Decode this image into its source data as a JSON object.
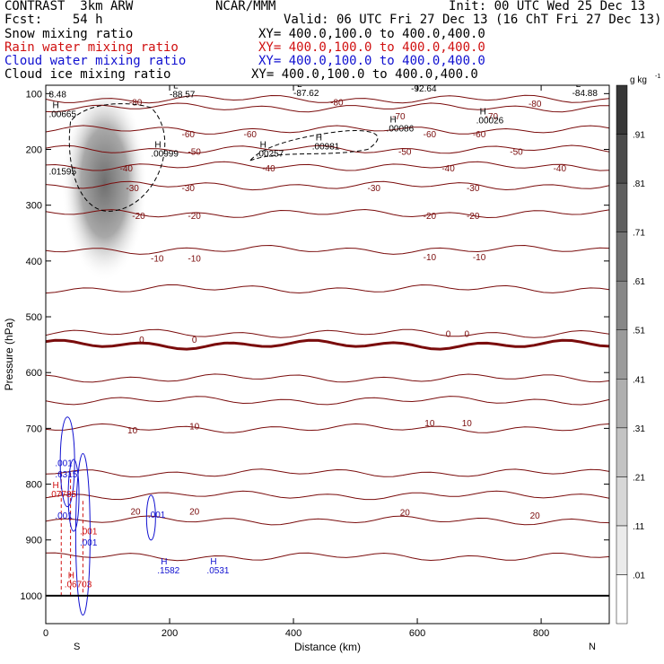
{
  "header": {
    "title": "CONTRAST  3km ARW",
    "center": "NCAR/MMM",
    "init": "Init: 00 UTC Wed 25 Dec 13",
    "fcst": "Fcst:    54 h",
    "valid": "Valid: 06 UTC Fri 27 Dec 13 (16 ChT Fri 27 Dec 13)",
    "fields": [
      {
        "name": "Snow mixing ratio",
        "xy": "XY= 400.0,100.0 to 400.0,400.0",
        "color": "#000000"
      },
      {
        "name": "Rain water mixing ratio",
        "xy": "XY= 400.0,100.0 to 400.0,400.0",
        "color": "#d01010"
      },
      {
        "name": "Cloud water mixing ratio",
        "xy": "XY= 400.0,100.0 to 400.0,400.0",
        "color": "#1010d0"
      },
      {
        "name": "Cloud ice mixing ratio",
        "xy": "XY= 400.0,100.0 to 400.0,400.0",
        "color": "#000000"
      }
    ]
  },
  "chart_data": {
    "type": "heatmap",
    "xlabel": "Distance (km)",
    "ylabel": "Pressure (hPa)",
    "xlim": [
      0,
      910
    ],
    "ylim": [
      1050,
      85
    ],
    "x_ticks": [
      0,
      200,
      400,
      600,
      800
    ],
    "y_ticks": [
      100,
      200,
      300,
      400,
      500,
      600,
      700,
      800,
      900,
      1000
    ],
    "x_end_labels": {
      "left": "S",
      "right": "N"
    },
    "colorbar": {
      "unit": "g kg",
      "unit_exp": "-1",
      "levels": [
        ".01",
        ".11",
        ".21",
        ".31",
        ".41",
        ".51",
        ".61",
        ".71",
        ".81",
        ".91"
      ]
    },
    "temperature_contours": [
      {
        "label": "-80",
        "p": 110
      },
      {
        "label": "-70",
        "p": 125
      },
      {
        "label": "-60",
        "p": 165
      },
      {
        "label": "-50",
        "p": 200
      },
      {
        "label": "-40",
        "p": 230
      },
      {
        "label": "-30",
        "p": 265
      },
      {
        "label": "-20",
        "p": 315
      },
      {
        "label": "-10",
        "p": 380
      },
      {
        "label": "0",
        "p": 450
      },
      {
        "label": "0",
        "p": 530
      },
      {
        "label": "0",
        "p": 550
      },
      {
        "label": "10",
        "p": 610
      },
      {
        "label": "10",
        "p": 650
      },
      {
        "label": "10",
        "p": 700
      },
      {
        "label": "20",
        "p": 780
      },
      {
        "label": "20",
        "p": 820
      },
      {
        "label": "20",
        "p": 865
      },
      {
        "label": "20",
        "p": 930
      }
    ],
    "contour_labels": [
      {
        "text": "-80",
        "x": 145,
        "p": 115
      },
      {
        "text": "-80",
        "x": 470,
        "p": 115
      },
      {
        "text": "-80",
        "x": 790,
        "p": 117
      },
      {
        "text": "-70",
        "x": 570,
        "p": 140
      },
      {
        "text": "-70",
        "x": 720,
        "p": 140
      },
      {
        "text": "-60",
        "x": 230,
        "p": 172
      },
      {
        "text": "-60",
        "x": 330,
        "p": 172
      },
      {
        "text": "-60",
        "x": 620,
        "p": 172
      },
      {
        "text": "-60",
        "x": 700,
        "p": 172
      },
      {
        "text": "-50",
        "x": 240,
        "p": 203
      },
      {
        "text": "-50",
        "x": 580,
        "p": 203
      },
      {
        "text": "-50",
        "x": 760,
        "p": 203
      },
      {
        "text": "-40",
        "x": 130,
        "p": 233
      },
      {
        "text": "-40",
        "x": 360,
        "p": 233
      },
      {
        "text": "-40",
        "x": 650,
        "p": 233
      },
      {
        "text": "-40",
        "x": 830,
        "p": 233
      },
      {
        "text": "-30",
        "x": 140,
        "p": 268
      },
      {
        "text": "-30",
        "x": 230,
        "p": 268
      },
      {
        "text": "-30",
        "x": 530,
        "p": 268
      },
      {
        "text": "-30",
        "x": 690,
        "p": 268
      },
      {
        "text": "-20",
        "x": 150,
        "p": 318
      },
      {
        "text": "-20",
        "x": 240,
        "p": 318
      },
      {
        "text": "-20",
        "x": 620,
        "p": 318
      },
      {
        "text": "-20",
        "x": 690,
        "p": 318
      },
      {
        "text": "-10",
        "x": 180,
        "p": 395
      },
      {
        "text": "-10",
        "x": 240,
        "p": 395
      },
      {
        "text": "-10",
        "x": 620,
        "p": 392
      },
      {
        "text": "-10",
        "x": 700,
        "p": 392
      },
      {
        "text": "0",
        "x": 155,
        "p": 540
      },
      {
        "text": "0",
        "x": 240,
        "p": 540
      },
      {
        "text": "0",
        "x": 650,
        "p": 530
      },
      {
        "text": "0",
        "x": 680,
        "p": 530
      },
      {
        "text": "10",
        "x": 140,
        "p": 703
      },
      {
        "text": "10",
        "x": 240,
        "p": 695
      },
      {
        "text": "10",
        "x": 620,
        "p": 690
      },
      {
        "text": "10",
        "x": 680,
        "p": 690
      },
      {
        "text": "20",
        "x": 145,
        "p": 848
      },
      {
        "text": "20",
        "x": 240,
        "p": 848
      },
      {
        "text": "20",
        "x": 580,
        "p": 850
      },
      {
        "text": "20",
        "x": 790,
        "p": 855
      }
    ],
    "extrema_labels": [
      {
        "text": "-88.57",
        "x": 200,
        "p": 107,
        "color": "#000000",
        "letter": "L"
      },
      {
        "text": "-87.62",
        "x": 400,
        "p": 104,
        "color": "#000000",
        "letter": "L"
      },
      {
        "text": "-92.64",
        "x": 590,
        "p": 96,
        "color": "#000000",
        "letter": "L"
      },
      {
        "text": "-84.88",
        "x": 850,
        "p": 104,
        "color": "#000000",
        "letter": "L"
      },
      {
        "text": "8.48",
        "x": 5,
        "p": 107,
        "color": "#000000",
        "letter": ""
      },
      {
        "text": ".00665",
        "x": 5,
        "p": 142,
        "color": "#000000",
        "letter": "H"
      },
      {
        "text": ".00999",
        "x": 170,
        "p": 213,
        "color": "#000000",
        "letter": "H"
      },
      {
        "text": ".00257",
        "x": 340,
        "p": 213,
        "color": "#000000",
        "letter": "H"
      },
      {
        "text": ".00981",
        "x": 430,
        "p": 200,
        "color": "#000000",
        "letter": "H"
      },
      {
        "text": ".00086",
        "x": 550,
        "p": 168,
        "color": "#000000",
        "letter": "H"
      },
      {
        "text": ".00026",
        "x": 695,
        "p": 153,
        "color": "#000000",
        "letter": "H"
      },
      {
        "text": ".01595",
        "x": 5,
        "p": 245,
        "color": "#000000",
        "letter": ""
      },
      {
        "text": ".001",
        "x": 15,
        "p": 768,
        "color": "#1010d0",
        "letter": ""
      },
      {
        "text": ".6315",
        "x": 15,
        "p": 788,
        "color": "#1010d0",
        "letter": ""
      },
      {
        "text": ".07785",
        "x": 5,
        "p": 823,
        "color": "#d01010",
        "letter": "H"
      },
      {
        "text": ".001",
        "x": 15,
        "p": 862,
        "color": "#1010d0",
        "letter": ""
      },
      {
        "text": ".001",
        "x": 55,
        "p": 890,
        "color": "#d01010",
        "letter": ""
      },
      {
        "text": ".001",
        "x": 55,
        "p": 910,
        "color": "#1010d0",
        "letter": ""
      },
      {
        "text": ".001",
        "x": 165,
        "p": 860,
        "color": "#1010d0",
        "letter": ""
      },
      {
        "text": ".1582",
        "x": 180,
        "p": 960,
        "color": "#1010d0",
        "letter": "H"
      },
      {
        "text": ".0531",
        "x": 260,
        "p": 960,
        "color": "#1010d0",
        "letter": "H"
      },
      {
        "text": ".06703",
        "x": 30,
        "p": 985,
        "color": "#d01010",
        "letter": "H"
      }
    ]
  }
}
